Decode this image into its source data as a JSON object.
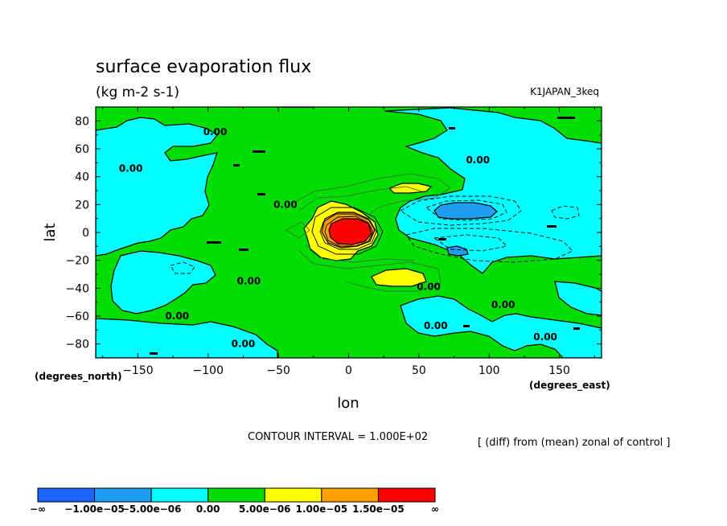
{
  "chart_data": {
    "type": "contour",
    "title": "surface evaporation flux",
    "units": "(kg m-2 s-1)",
    "experiment": "K1JAPAN_3keq",
    "xlabel": "lon",
    "ylabel": "lat",
    "x_units": "(degrees_east)",
    "y_units": "(degrees_north)",
    "xlim": [
      -180,
      180
    ],
    "ylim": [
      -90,
      90
    ],
    "x_ticks": [
      "−150",
      "−100",
      "−50",
      "0",
      "50",
      "100",
      "150"
    ],
    "x_tick_values": [
      -150,
      -100,
      -50,
      0,
      50,
      100,
      150
    ],
    "y_ticks": [
      "80",
      "60",
      "40",
      "20",
      "0",
      "−20",
      "−40",
      "−60",
      "−80"
    ],
    "y_tick_values": [
      80,
      60,
      40,
      20,
      0,
      -20,
      -40,
      -60,
      -80
    ],
    "contour_interval": "CONTOUR INTERVAL = 1.000E+02",
    "note": "[ (diff) from (mean) zonal of control ]",
    "contour_labels": [
      {
        "text": "0.00",
        "lon": -95,
        "lat": 72
      },
      {
        "text": "0.00",
        "lon": -155,
        "lat": 46
      },
      {
        "text": "0.00",
        "lon": -45,
        "lat": 20
      },
      {
        "text": "0.00",
        "lon": 92,
        "lat": 52
      },
      {
        "text": "0.00",
        "lon": -71,
        "lat": -35
      },
      {
        "text": "0.00",
        "lon": 57,
        "lat": -39
      },
      {
        "text": "0.00",
        "lon": 110,
        "lat": -52
      },
      {
        "text": "0.00",
        "lon": -122,
        "lat": -60
      },
      {
        "text": "0.00",
        "lon": 62,
        "lat": -67
      },
      {
        "text": "0.00",
        "lon": 140,
        "lat": -75
      },
      {
        "text": "0.00",
        "lon": -75,
        "lat": -80
      }
    ],
    "colorbar": {
      "colors": [
        "#1e64ff",
        "#1e9ef0",
        "#00ffff",
        "#00dd00",
        "#ffff00",
        "#ffa000",
        "#ff0000"
      ],
      "labels": [
        "−∞",
        "−1.00e−05",
        "−5.00e−06",
        "0.00",
        "5.00e−06",
        "1.00e−05",
        "1.50e−05",
        "∞"
      ],
      "levels": [
        -1e-05,
        -5e-06,
        0,
        5e-06,
        1e-05,
        1.5e-05
      ]
    },
    "features": [
      {
        "level": "max",
        "desc": "strong positive center",
        "lon": 3,
        "lat": 1
      },
      {
        "level": "positive",
        "lon": 40,
        "lat": 31
      },
      {
        "level": "positive",
        "lon": 40,
        "lat": -31
      },
      {
        "level": "negative",
        "lon": 82,
        "lat": 14
      },
      {
        "level": "negative",
        "lon": 75,
        "lat": -14
      }
    ]
  }
}
